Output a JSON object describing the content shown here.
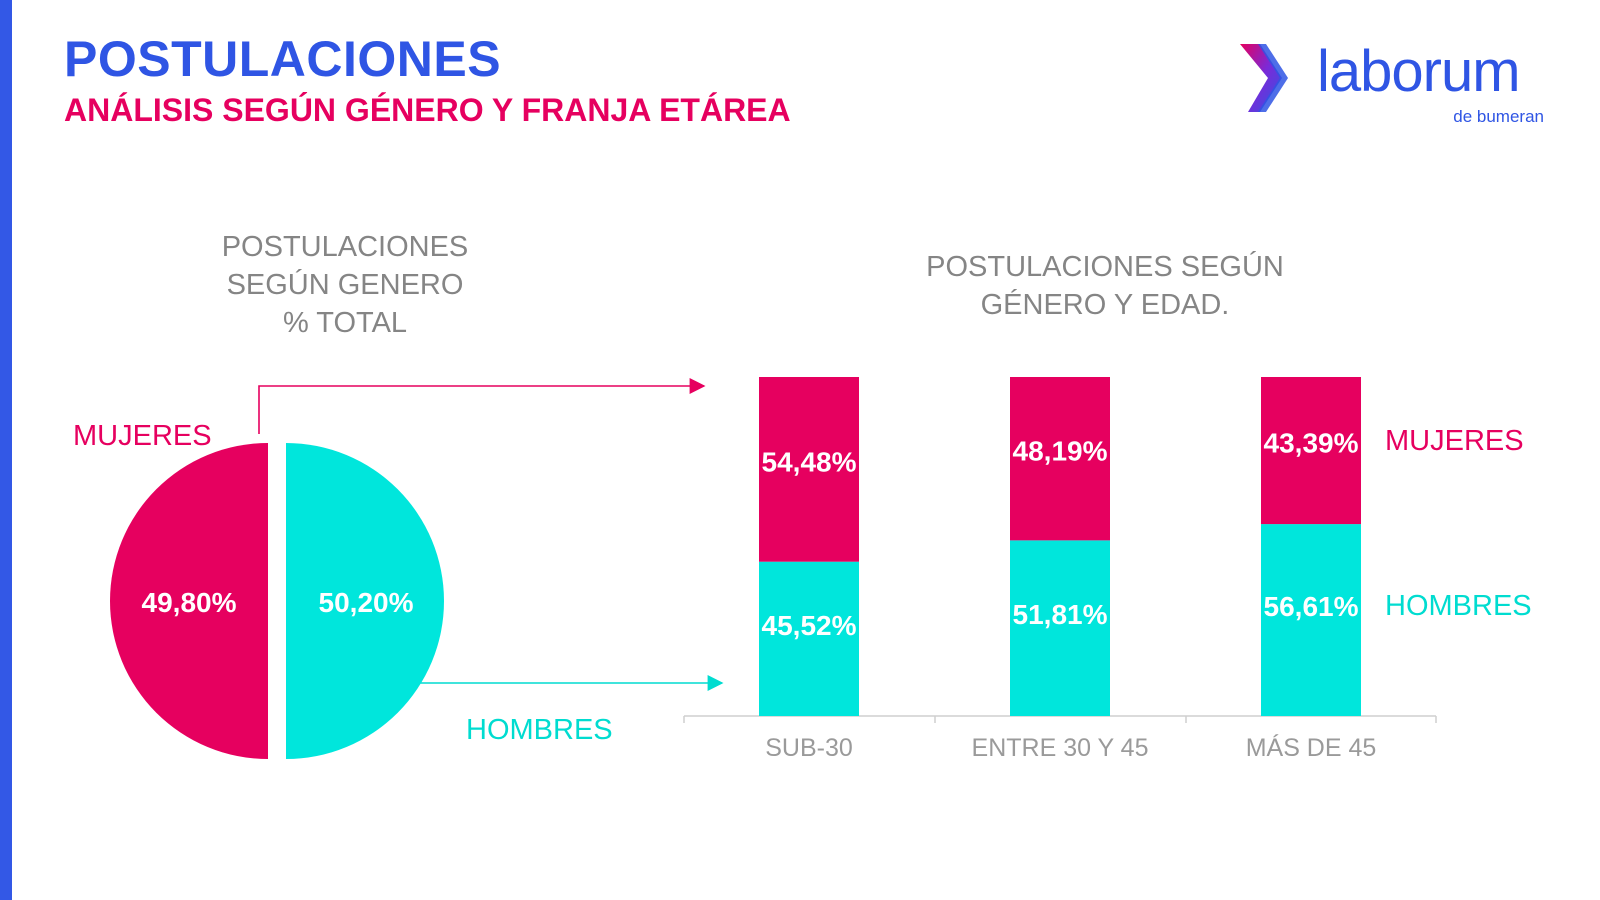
{
  "header": {
    "title": "POSTULACIONES",
    "subtitle": "ANÁLISIS SEGÚN GÉNERO Y FRANJA ETÁREA"
  },
  "logo": {
    "text": "laborum",
    "sub": "de bumeran"
  },
  "colors": {
    "accent_blue": "#2f55e4",
    "mujeres": "#e6005f",
    "hombres": "#00e6dc",
    "axis_text": "#9a9a9a"
  },
  "chart_data": [
    {
      "type": "pie",
      "title": "POSTULACIONES\nSEGÚN GENERO\n% TOTAL",
      "slices": [
        {
          "name": "MUJERES",
          "value": 49.8,
          "label": "49,80%"
        },
        {
          "name": "HOMBRES",
          "value": 50.2,
          "label": "50,20%"
        }
      ]
    },
    {
      "type": "bar",
      "stacked": true,
      "title": "POSTULACIONES SEGÚN\nGÉNERO Y EDAD.",
      "categories": [
        "SUB-30",
        "ENTRE 30 Y 45",
        "MÁS DE 45"
      ],
      "series": [
        {
          "name": "HOMBRES",
          "values": [
            45.52,
            51.81,
            56.61
          ],
          "labels": [
            "45,52%",
            "51,81%",
            "56,61%"
          ]
        },
        {
          "name": "MUJERES",
          "values": [
            54.48,
            48.19,
            43.39
          ],
          "labels": [
            "54,48%",
            "48,19%",
            "43,39%"
          ]
        }
      ],
      "ylim": [
        0,
        100
      ],
      "legend": "right"
    }
  ]
}
